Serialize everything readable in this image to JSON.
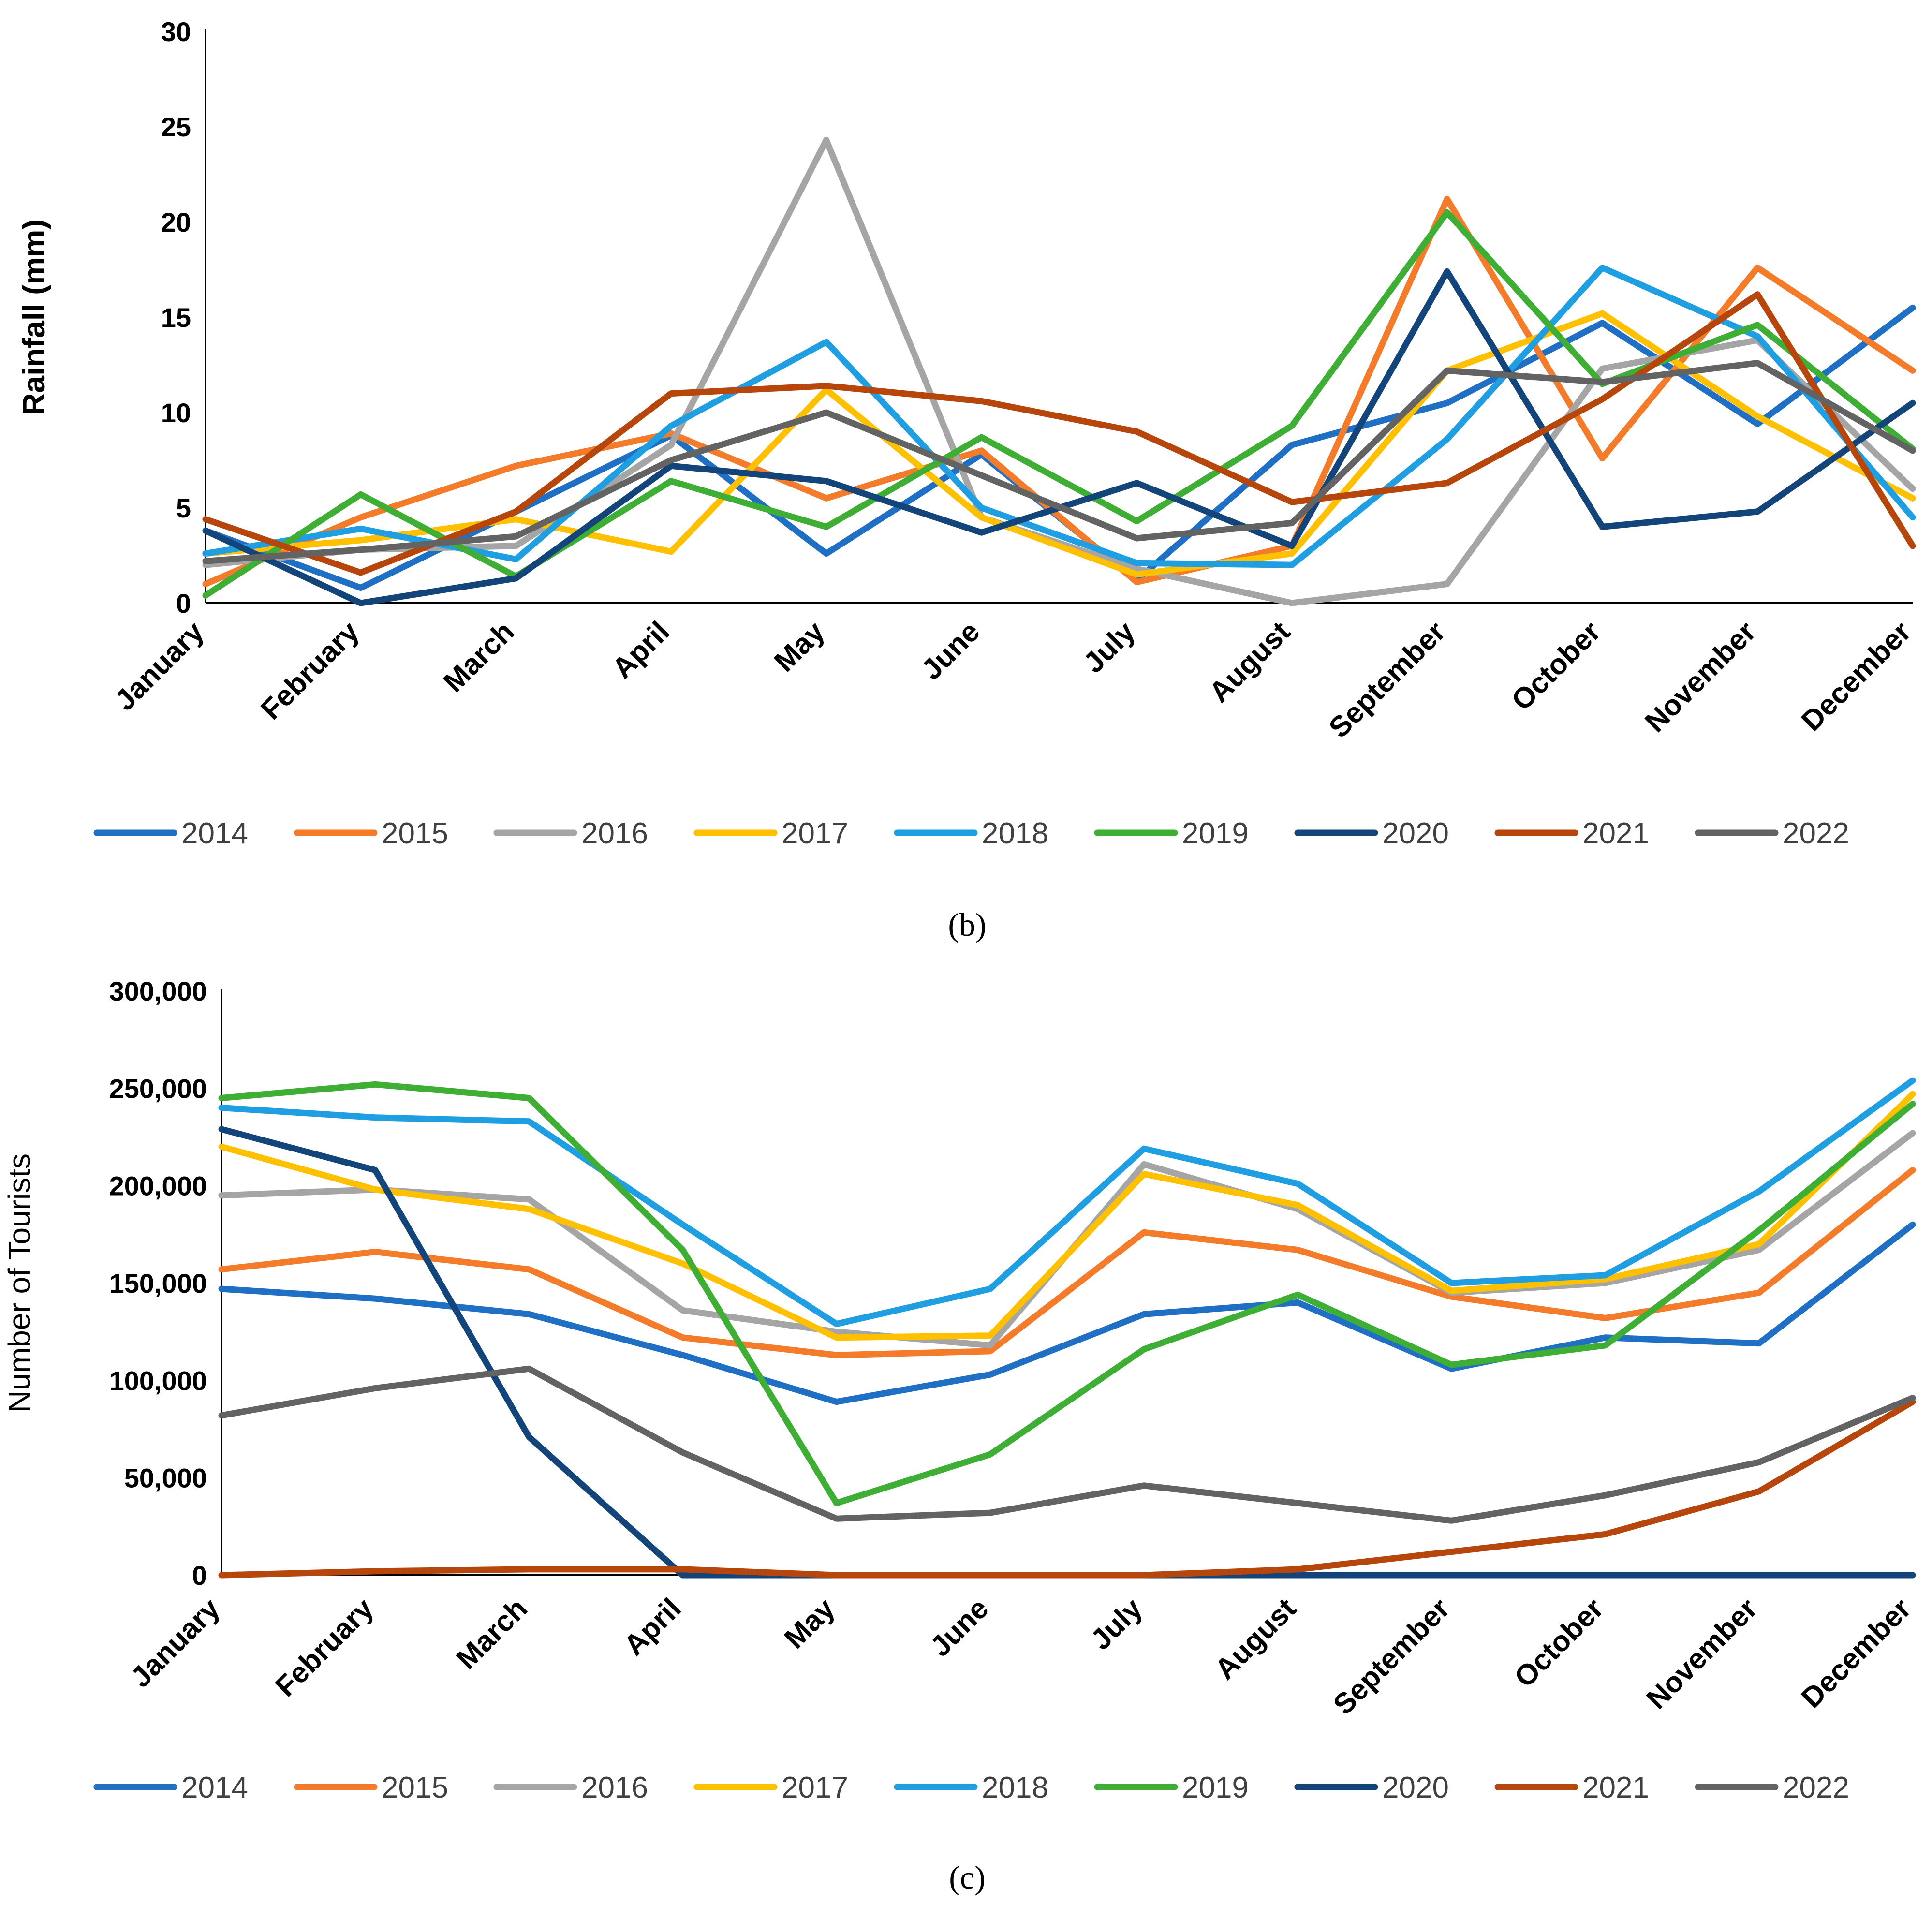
{
  "colors": {
    "2014": "#1f6fc5",
    "2015": "#f37b2a",
    "2016": "#a5a5a5",
    "2017": "#ffc000",
    "2018": "#1f9ee1",
    "2019": "#3fae35",
    "2020": "#13447a",
    "2021": "#b6460b",
    "2022": "#636363"
  },
  "chart_data": [
    {
      "type": "line",
      "panel_label": "b",
      "panel_label_text": "(b)",
      "title": "",
      "xlabel": "",
      "ylabel": "Rainfall (mm)",
      "ylim": [
        0,
        30
      ],
      "yticks": [
        0,
        5,
        10,
        15,
        20,
        25,
        30
      ],
      "ytick_labels": [
        "0",
        "5",
        "10",
        "15",
        "20",
        "25",
        "30"
      ],
      "categories": [
        "January",
        "February",
        "March",
        "April",
        "May",
        "June",
        "July",
        "August",
        "September",
        "October",
        "November",
        "December"
      ],
      "legend_position": "bottom",
      "series": [
        {
          "name": "2014",
          "values": [
            3.8,
            0.8,
            4.8,
            8.8,
            2.6,
            7.8,
            1.2,
            8.3,
            10.5,
            14.7,
            9.4,
            15.5
          ]
        },
        {
          "name": "2015",
          "values": [
            1.0,
            4.5,
            7.2,
            8.9,
            5.5,
            8.0,
            1.1,
            3.0,
            21.2,
            7.6,
            17.6,
            12.2
          ]
        },
        {
          "name": "2016",
          "values": [
            2.0,
            2.8,
            3.0,
            8.3,
            24.3,
            4.5,
            1.8,
            0.0,
            1.0,
            12.3,
            13.8,
            6.0
          ]
        },
        {
          "name": "2017",
          "values": [
            2.6,
            3.3,
            4.4,
            2.7,
            11.2,
            4.5,
            1.5,
            2.6,
            12.2,
            15.2,
            9.8,
            5.5
          ]
        },
        {
          "name": "2018",
          "values": [
            2.6,
            3.9,
            2.3,
            9.3,
            13.7,
            5.0,
            2.1,
            2.0,
            8.6,
            17.6,
            14.0,
            4.5
          ]
        },
        {
          "name": "2019",
          "values": [
            0.4,
            5.7,
            1.4,
            6.4,
            4.0,
            8.7,
            4.3,
            9.3,
            20.5,
            11.5,
            14.6,
            8.1
          ]
        },
        {
          "name": "2020",
          "values": [
            3.8,
            0.0,
            1.3,
            7.2,
            6.4,
            3.7,
            6.3,
            3.0,
            17.4,
            4.0,
            4.8,
            10.5
          ]
        },
        {
          "name": "2021",
          "values": [
            4.4,
            1.6,
            4.8,
            11.0,
            11.4,
            10.6,
            9.0,
            5.3,
            6.3,
            10.7,
            16.2,
            3.0
          ]
        },
        {
          "name": "2022",
          "values": [
            2.2,
            2.8,
            3.5,
            7.5,
            10.0,
            6.7,
            3.4,
            4.2,
            12.2,
            11.6,
            12.6,
            8.0
          ]
        }
      ]
    },
    {
      "type": "line",
      "panel_label": "c",
      "panel_label_text": "(c)",
      "title": "",
      "xlabel": "",
      "ylabel": "Number of Tourists",
      "ylim": [
        0,
        300000
      ],
      "yticks": [
        0,
        50000,
        100000,
        150000,
        200000,
        250000,
        300000
      ],
      "ytick_labels": [
        "0",
        "50,000",
        "100,000",
        "150,000",
        "200,000",
        "250,000",
        "300,000"
      ],
      "categories": [
        "January",
        "February",
        "March",
        "April",
        "May",
        "June",
        "July",
        "August",
        "September",
        "October",
        "November",
        "December"
      ],
      "legend_position": "bottom",
      "series": [
        {
          "name": "2014",
          "values": [
            147000,
            142000,
            134000,
            113000,
            89000,
            103000,
            134000,
            140000,
            106000,
            122000,
            119000,
            180000
          ]
        },
        {
          "name": "2015",
          "values": [
            157000,
            166000,
            157000,
            122000,
            113000,
            115000,
            176000,
            167000,
            143000,
            132000,
            145000,
            208000
          ]
        },
        {
          "name": "2016",
          "values": [
            195000,
            198000,
            193000,
            136000,
            125000,
            118000,
            211000,
            188000,
            145000,
            150000,
            167000,
            227000
          ]
        },
        {
          "name": "2017",
          "values": [
            220000,
            198000,
            188000,
            160000,
            122000,
            123000,
            206000,
            190000,
            146000,
            152000,
            170000,
            247000
          ]
        },
        {
          "name": "2018",
          "values": [
            240000,
            235000,
            233000,
            180000,
            129000,
            147000,
            219000,
            201000,
            150000,
            154000,
            197000,
            254000
          ]
        },
        {
          "name": "2019",
          "values": [
            245000,
            252000,
            245000,
            167000,
            37000,
            62000,
            116000,
            144000,
            108000,
            118000,
            177000,
            242000
          ]
        },
        {
          "name": "2020",
          "values": [
            229000,
            208000,
            71000,
            0,
            0,
            0,
            0,
            0,
            0,
            0,
            0,
            0
          ]
        },
        {
          "name": "2021",
          "values": [
            0,
            2000,
            3000,
            3000,
            0,
            0,
            0,
            3000,
            12000,
            21000,
            43000,
            89000
          ]
        },
        {
          "name": "2022",
          "values": [
            82000,
            96000,
            106000,
            63000,
            29000,
            32000,
            46000,
            37000,
            28000,
            41000,
            58000,
            91000
          ]
        }
      ]
    }
  ]
}
